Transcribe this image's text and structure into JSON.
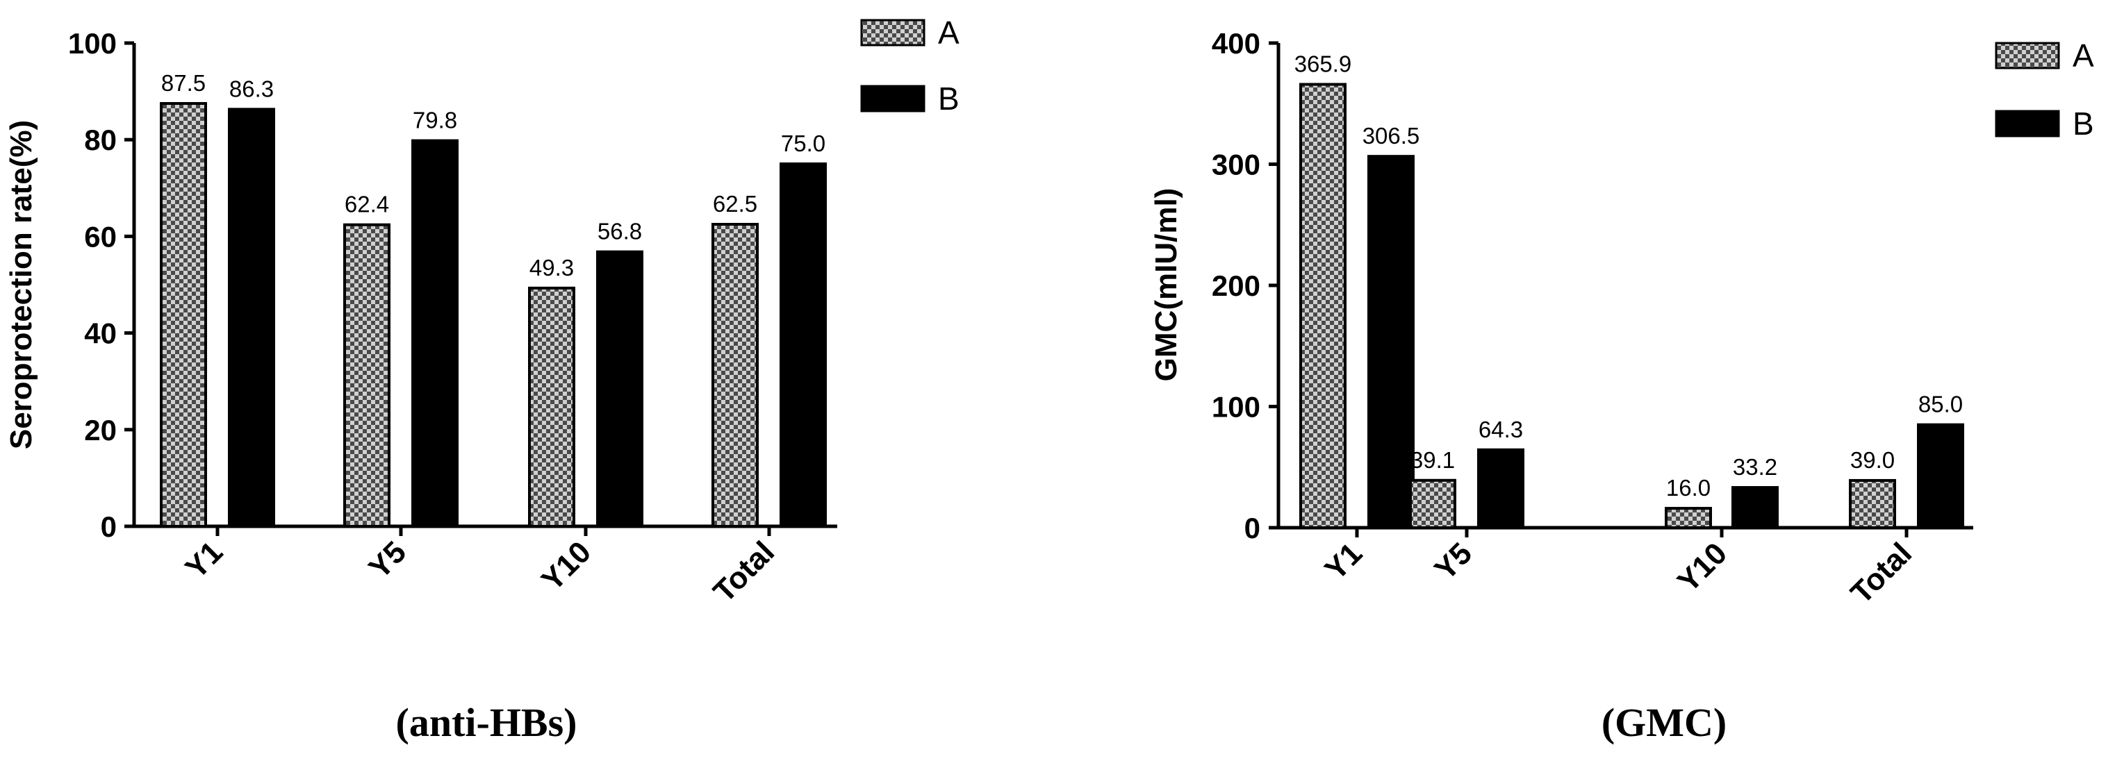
{
  "colors": {
    "bar_fill_a": "#d0d0d0",
    "bar_check_a": "#4a4a4a",
    "bar_fill_b": "#000000",
    "axis": "#000000"
  },
  "chart_data": [
    {
      "type": "bar",
      "caption": "(anti-HBs)",
      "ylabel": "Seroprotection rate(%)",
      "xlabel": "",
      "ylim": [
        0,
        100
      ],
      "yticks": [
        "0",
        "20",
        "40",
        "60",
        "80",
        "100"
      ],
      "categories": [
        "Y1",
        "Y5",
        "Y10",
        "Total"
      ],
      "series": [
        {
          "name": "A",
          "pattern": "checker",
          "values": [
            87.5,
            62.4,
            49.3,
            62.5
          ],
          "labels": [
            "87.5",
            "62.4",
            "49.3",
            "62.5"
          ]
        },
        {
          "name": "B",
          "pattern": "solid",
          "values": [
            86.3,
            79.8,
            56.8,
            75.0
          ],
          "labels": [
            "86.3",
            "79.8",
            "56.8",
            "75.0"
          ]
        }
      ],
      "legend": "top-right",
      "grid": false
    },
    {
      "type": "bar",
      "caption": "(GMC)",
      "ylabel": "GMC(mIU/ml)",
      "xlabel": "",
      "ylim": [
        0,
        400
      ],
      "yticks": [
        "0",
        "100",
        "200",
        "300",
        "400"
      ],
      "categories": [
        "Y1",
        "Y5",
        "Y10",
        "Total"
      ],
      "series": [
        {
          "name": "A",
          "pattern": "checker",
          "values": [
            365.9,
            39.1,
            16.0,
            39.0
          ],
          "labels": [
            "365.9",
            "39.1",
            "16.0",
            "39.0"
          ]
        },
        {
          "name": "B",
          "pattern": "solid",
          "values": [
            306.5,
            64.3,
            33.2,
            85.0
          ],
          "labels": [
            "306.5",
            "64.3",
            "33.2",
            "85.0"
          ]
        }
      ],
      "legend": "top-right",
      "grid": false
    }
  ]
}
